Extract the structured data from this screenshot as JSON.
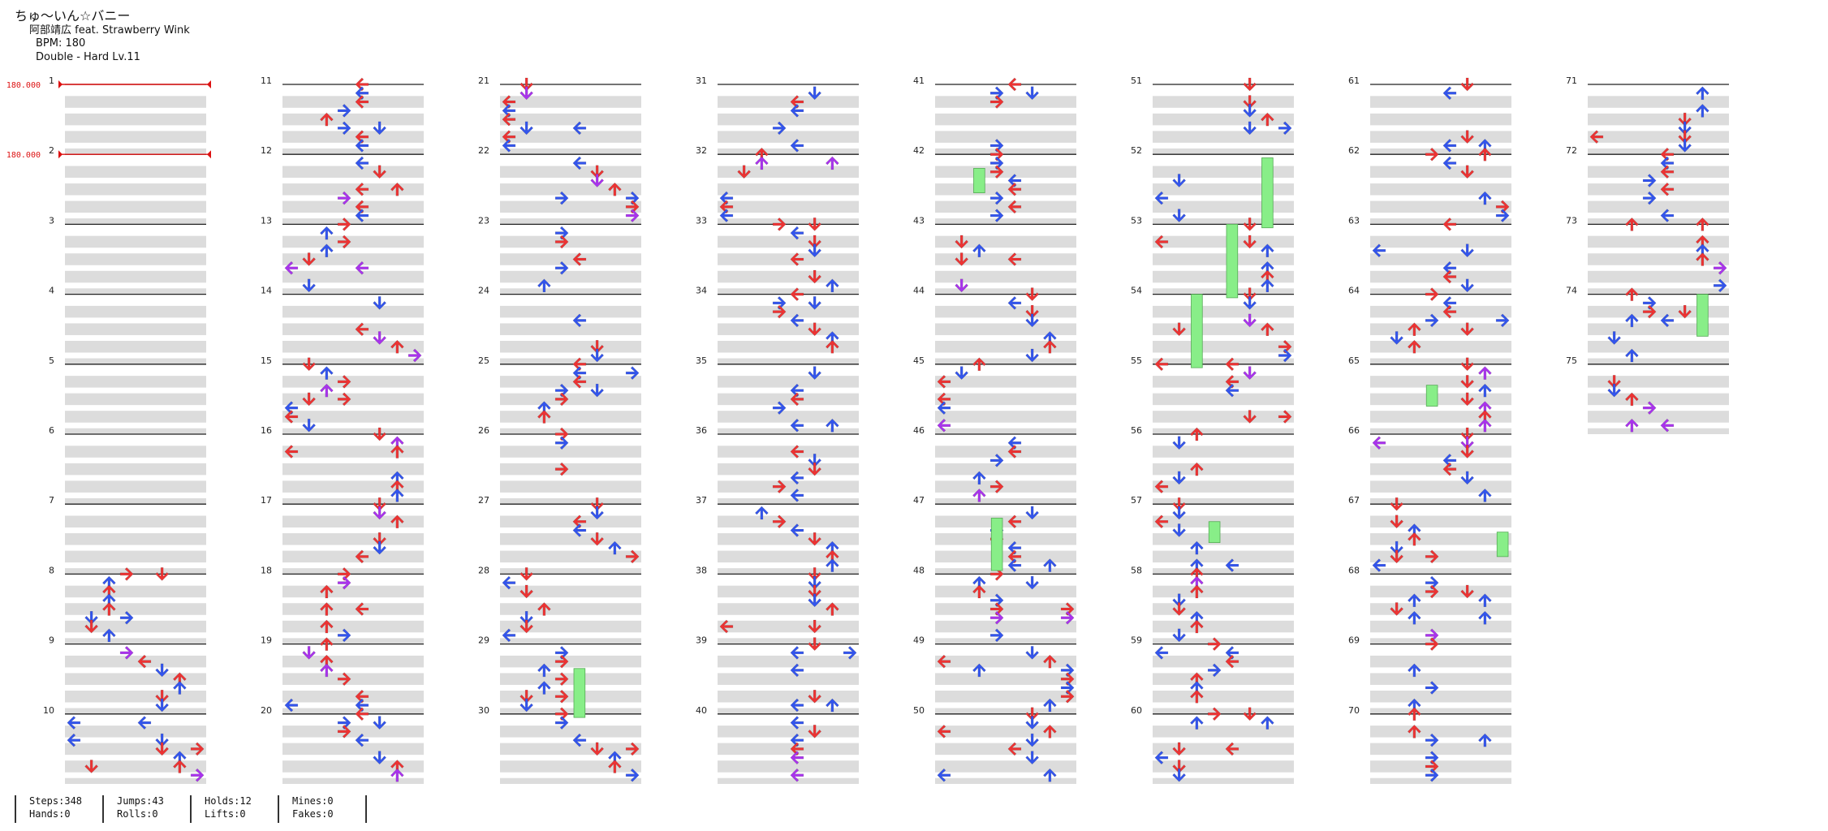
{
  "song": {
    "title": "ちゅ～いん☆バニー",
    "artist": "阿部靖広 feat. Strawberry Wink",
    "bpm_text": "BPM: 180",
    "difficulty_text": "Double - Hard  Lv.11"
  },
  "bpm_changes": [
    {
      "measure": 1,
      "label": "180.000"
    },
    {
      "measure": 2,
      "label": "180.000"
    }
  ],
  "chart": {
    "total_measures": 75,
    "measures_per_column": 10,
    "rows_per_measure": 4
  },
  "colors": {
    "note_4th": "#ee3333",
    "note_8th": "#3355ee",
    "note_16th": "#aa33ee",
    "hold_body": "#88ee88",
    "bpm_marker": "#dd1111",
    "beat_band": "#dcdcdc"
  },
  "stats": {
    "steps": "Steps:348",
    "hands": "Hands:0",
    "jumps": "Jumps:43",
    "rolls": "Rolls:0",
    "holds": "Holds:12",
    "lifts": "Lifts:0",
    "mines": "Mines:0",
    "fakes": "Fakes:0"
  }
}
